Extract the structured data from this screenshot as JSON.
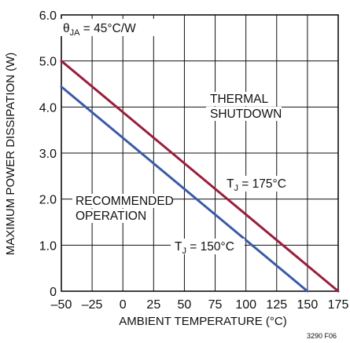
{
  "chart_data": {
    "type": "line",
    "xlabel": "AMBIENT TEMPERATURE (°C)",
    "ylabel": "MAXIMUM POWER DISSIPATION (W)",
    "xlim": [
      -50,
      175
    ],
    "ylim": [
      0,
      6
    ],
    "x_ticks": [
      "–50",
      "–25",
      "0",
      "25",
      "50",
      "75",
      "100",
      "125",
      "150",
      "175"
    ],
    "y_ticks": [
      "0",
      "1.0",
      "2.0",
      "3.0",
      "4.0",
      "5.0",
      "6.0"
    ],
    "grid": true,
    "series": [
      {
        "name": "TJ = 175°C",
        "color": "#9b1d3c",
        "x": [
          -50,
          175
        ],
        "y": [
          5.0,
          0
        ]
      },
      {
        "name": "TJ = 150°C",
        "color": "#3b5aa8",
        "x": [
          -50,
          150
        ],
        "y": [
          4.44,
          0
        ]
      }
    ],
    "annotations": {
      "theta": {
        "base": "θ",
        "sub": "JA",
        "rest": " = 45°C/W"
      },
      "thermal_line1": "THERMAL",
      "thermal_line2": "SHUTDOWN",
      "recommended_line1": "RECOMMENDED",
      "recommended_line2": "OPERATION",
      "tj175": {
        "base": "T",
        "sub": "J",
        "rest": " = 175°C"
      },
      "tj150": {
        "base": "T",
        "sub": "J",
        "rest": " = 150°C"
      }
    },
    "figure_id": "3290 F06"
  }
}
